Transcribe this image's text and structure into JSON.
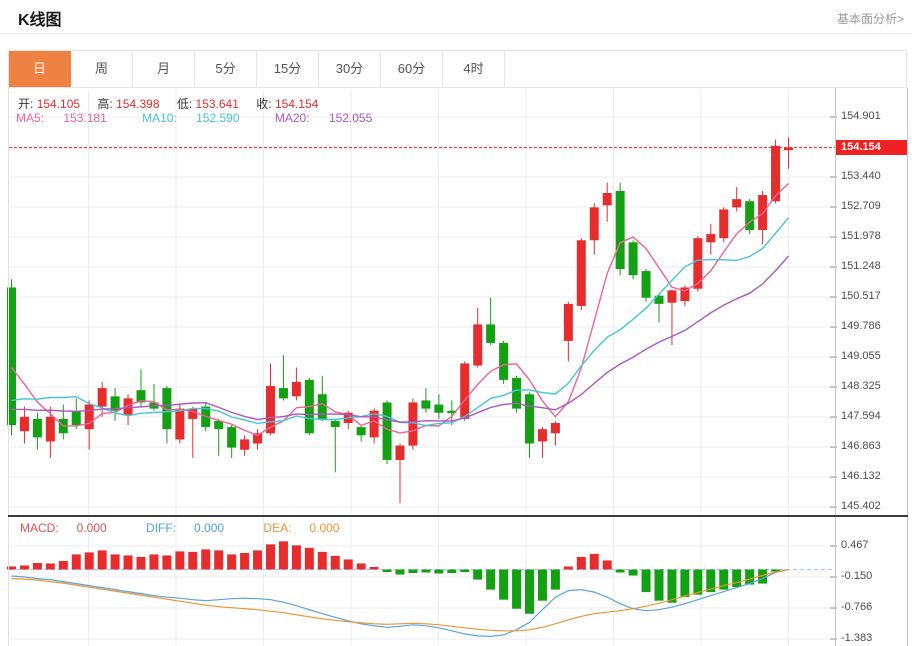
{
  "header": {
    "title": "K线图",
    "link": "基本面分析>"
  },
  "tabs": {
    "items": [
      "日",
      "周",
      "月",
      "5分",
      "15分",
      "30分",
      "60分",
      "4时"
    ],
    "selected": "日"
  },
  "ohlc": {
    "open_label": "开:",
    "open": "154.105",
    "high_label": "高:",
    "high": "154.398",
    "low_label": "低:",
    "low": "153.641",
    "close_label": "收:",
    "close": "154.154"
  },
  "ma": {
    "ma5_label": "MA5:",
    "ma5": "153.181",
    "ma10_label": "MA10:",
    "ma10": "152.590",
    "ma20_label": "MA20:",
    "ma20": "152.055"
  },
  "macd": {
    "macd_label": "MACD:",
    "macd_value": "0.000",
    "diff_label": "DIFF:",
    "diff_value": "0.000",
    "dea_label": "DEA:",
    "dea_value": "0.000"
  },
  "price_tag": {
    "value": "154.154"
  },
  "colors": {
    "up": "#e62c2c",
    "down": "#13a113",
    "ma5": "#ee6397",
    "ma10": "#43c6db",
    "ma20": "#aa56c3",
    "diff": "#5ba2e0",
    "dea": "#ef9433",
    "tab_active": "#ef8143",
    "price_line": "#ee2222",
    "grid": "#e9edf2",
    "axis_text": "#4c4c4c",
    "macd_label": "#e05151",
    "diff_label": "#4da0e8",
    "dea_label": "#f39333"
  },
  "chart_data": [
    {
      "type": "candlestick",
      "title": "K线图 日K",
      "legend": [
        "MA5",
        "MA10",
        "MA20"
      ],
      "y_ticks": [
        154.901,
        153.44,
        152.709,
        151.978,
        151.248,
        150.517,
        149.786,
        149.055,
        148.325,
        147.594,
        146.863,
        146.132,
        145.402
      ],
      "ylim": [
        145.16,
        155.61
      ],
      "current_price": 154.154,
      "ma_windows": [
        5,
        10,
        20
      ],
      "ma_seed": [
        147.56,
        147.56,
        147.56,
        147.56,
        147.56,
        147.56,
        147.56,
        147.56,
        147.56,
        147.56,
        147.2,
        147.2,
        147.2,
        147.2,
        147.2,
        149.6,
        149.3,
        149.0,
        148.7
      ],
      "candles": [
        [
          150.75,
          150.95,
          147.15,
          147.4
        ],
        [
          147.25,
          147.85,
          146.95,
          147.6
        ],
        [
          147.55,
          147.7,
          146.8,
          147.1
        ],
        [
          147.0,
          147.85,
          146.6,
          147.6
        ],
        [
          147.55,
          147.9,
          147.05,
          147.2
        ],
        [
          147.75,
          148.05,
          147.3,
          147.4
        ],
        [
          147.3,
          148.0,
          146.8,
          147.9
        ],
        [
          147.85,
          148.45,
          147.6,
          148.3
        ],
        [
          148.1,
          148.3,
          147.5,
          147.75
        ],
        [
          147.65,
          148.15,
          147.4,
          148.05
        ],
        [
          148.25,
          148.75,
          147.85,
          147.95
        ],
        [
          147.95,
          148.4,
          147.75,
          147.8
        ],
        [
          148.3,
          148.35,
          146.95,
          147.3
        ],
        [
          147.05,
          147.9,
          146.95,
          147.8
        ],
        [
          147.55,
          147.85,
          146.6,
          147.8
        ],
        [
          147.85,
          147.95,
          147.25,
          147.35
        ],
        [
          147.5,
          147.55,
          146.65,
          147.3
        ],
        [
          147.35,
          147.4,
          146.6,
          146.85
        ],
        [
          146.8,
          147.15,
          146.65,
          147.05
        ],
        [
          146.95,
          147.3,
          146.8,
          147.2
        ],
        [
          147.2,
          148.9,
          147.15,
          148.35
        ],
        [
          148.3,
          149.1,
          148.0,
          148.05
        ],
        [
          148.1,
          148.8,
          148.0,
          148.45
        ],
        [
          148.5,
          148.55,
          147.15,
          147.2
        ],
        [
          148.15,
          148.6,
          147.5,
          147.55
        ],
        [
          147.5,
          147.55,
          146.25,
          147.35
        ],
        [
          147.45,
          147.75,
          147.3,
          147.7
        ],
        [
          147.35,
          147.4,
          147.0,
          147.15
        ],
        [
          147.1,
          147.8,
          146.95,
          147.75
        ],
        [
          147.95,
          148.0,
          146.45,
          146.55
        ],
        [
          146.55,
          146.95,
          145.5,
          146.9
        ],
        [
          146.9,
          148.05,
          146.8,
          147.95
        ],
        [
          148.0,
          148.3,
          147.7,
          147.8
        ],
        [
          147.9,
          148.15,
          147.55,
          147.7
        ],
        [
          147.75,
          148.0,
          147.4,
          147.7
        ],
        [
          147.55,
          148.95,
          147.5,
          148.9
        ],
        [
          148.85,
          150.25,
          148.8,
          149.85
        ],
        [
          149.85,
          150.5,
          149.35,
          149.4
        ],
        [
          149.4,
          149.45,
          148.4,
          148.5
        ],
        [
          148.55,
          148.6,
          147.7,
          147.8
        ],
        [
          148.15,
          148.2,
          146.6,
          146.95
        ],
        [
          147.0,
          147.35,
          146.6,
          147.3
        ],
        [
          147.2,
          147.5,
          146.9,
          147.45
        ],
        [
          149.45,
          150.4,
          148.95,
          150.35
        ],
        [
          150.3,
          151.95,
          150.2,
          151.9
        ],
        [
          151.9,
          152.8,
          151.55,
          152.7
        ],
        [
          152.75,
          153.3,
          152.35,
          153.05
        ],
        [
          153.1,
          153.3,
          151.05,
          151.2
        ],
        [
          151.85,
          151.9,
          150.95,
          151.05
        ],
        [
          151.15,
          151.2,
          150.4,
          150.5
        ],
        [
          150.55,
          150.6,
          149.9,
          150.35
        ],
        [
          150.38,
          150.7,
          149.35,
          150.68
        ],
        [
          150.42,
          150.8,
          150.3,
          150.75
        ],
        [
          150.72,
          152.0,
          150.65,
          151.95
        ],
        [
          151.85,
          152.3,
          151.55,
          152.05
        ],
        [
          151.95,
          152.7,
          151.85,
          152.65
        ],
        [
          152.7,
          153.2,
          152.6,
          152.9
        ],
        [
          152.85,
          152.9,
          152.05,
          152.15
        ],
        [
          152.15,
          153.1,
          151.8,
          153.0
        ],
        [
          152.85,
          154.35,
          152.8,
          154.2
        ],
        [
          154.105,
          154.398,
          153.641,
          154.154
        ]
      ]
    },
    {
      "type": "bar",
      "title": "MACD",
      "legend": [
        "MACD",
        "DIFF",
        "DEA"
      ],
      "y_ticks": [
        0.467,
        -0.15,
        -0.766,
        -1.383
      ],
      "ylim": [
        -1.53,
        0.9
      ],
      "hist": [
        0.06,
        0.08,
        0.13,
        0.12,
        0.17,
        0.3,
        0.34,
        0.38,
        0.3,
        0.28,
        0.25,
        0.3,
        0.28,
        0.36,
        0.35,
        0.4,
        0.38,
        0.3,
        0.33,
        0.38,
        0.5,
        0.56,
        0.48,
        0.43,
        0.35,
        0.27,
        0.2,
        0.12,
        0.05,
        -0.05,
        -0.1,
        -0.07,
        -0.06,
        -0.08,
        -0.07,
        -0.05,
        -0.2,
        -0.4,
        -0.6,
        -0.78,
        -0.88,
        -0.62,
        -0.4,
        0.06,
        0.25,
        0.31,
        0.18,
        -0.06,
        -0.12,
        -0.45,
        -0.62,
        -0.66,
        -0.55,
        -0.5,
        -0.45,
        -0.4,
        -0.35,
        -0.3,
        -0.28,
        -0.04,
        0.0
      ],
      "diff": [
        -0.13,
        -0.15,
        -0.18,
        -0.2,
        -0.24,
        -0.28,
        -0.32,
        -0.36,
        -0.4,
        -0.44,
        -0.48,
        -0.52,
        -0.55,
        -0.57,
        -0.6,
        -0.62,
        -0.6,
        -0.58,
        -0.57,
        -0.58,
        -0.6,
        -0.65,
        -0.72,
        -0.8,
        -0.88,
        -0.95,
        -1.02,
        -1.08,
        -1.12,
        -1.15,
        -1.13,
        -1.1,
        -1.12,
        -1.16,
        -1.22,
        -1.28,
        -1.32,
        -1.33,
        -1.3,
        -1.2,
        -1.05,
        -0.8,
        -0.55,
        -0.42,
        -0.4,
        -0.45,
        -0.55,
        -0.68,
        -0.78,
        -0.82,
        -0.8,
        -0.75,
        -0.68,
        -0.6,
        -0.52,
        -0.44,
        -0.36,
        -0.28,
        -0.18,
        -0.06,
        0.0
      ],
      "dea": [
        -0.18,
        -0.19,
        -0.21,
        -0.24,
        -0.27,
        -0.31,
        -0.35,
        -0.39,
        -0.43,
        -0.47,
        -0.51,
        -0.55,
        -0.59,
        -0.63,
        -0.67,
        -0.71,
        -0.74,
        -0.76,
        -0.78,
        -0.8,
        -0.83,
        -0.86,
        -0.9,
        -0.94,
        -0.98,
        -1.01,
        -1.04,
        -1.06,
        -1.08,
        -1.09,
        -1.08,
        -1.07,
        -1.08,
        -1.1,
        -1.13,
        -1.16,
        -1.19,
        -1.21,
        -1.22,
        -1.22,
        -1.2,
        -1.15,
        -1.08,
        -1.0,
        -0.93,
        -0.88,
        -0.85,
        -0.82,
        -0.78,
        -0.73,
        -0.67,
        -0.6,
        -0.53,
        -0.46,
        -0.39,
        -0.32,
        -0.26,
        -0.19,
        -0.12,
        -0.05,
        0.0
      ]
    }
  ]
}
